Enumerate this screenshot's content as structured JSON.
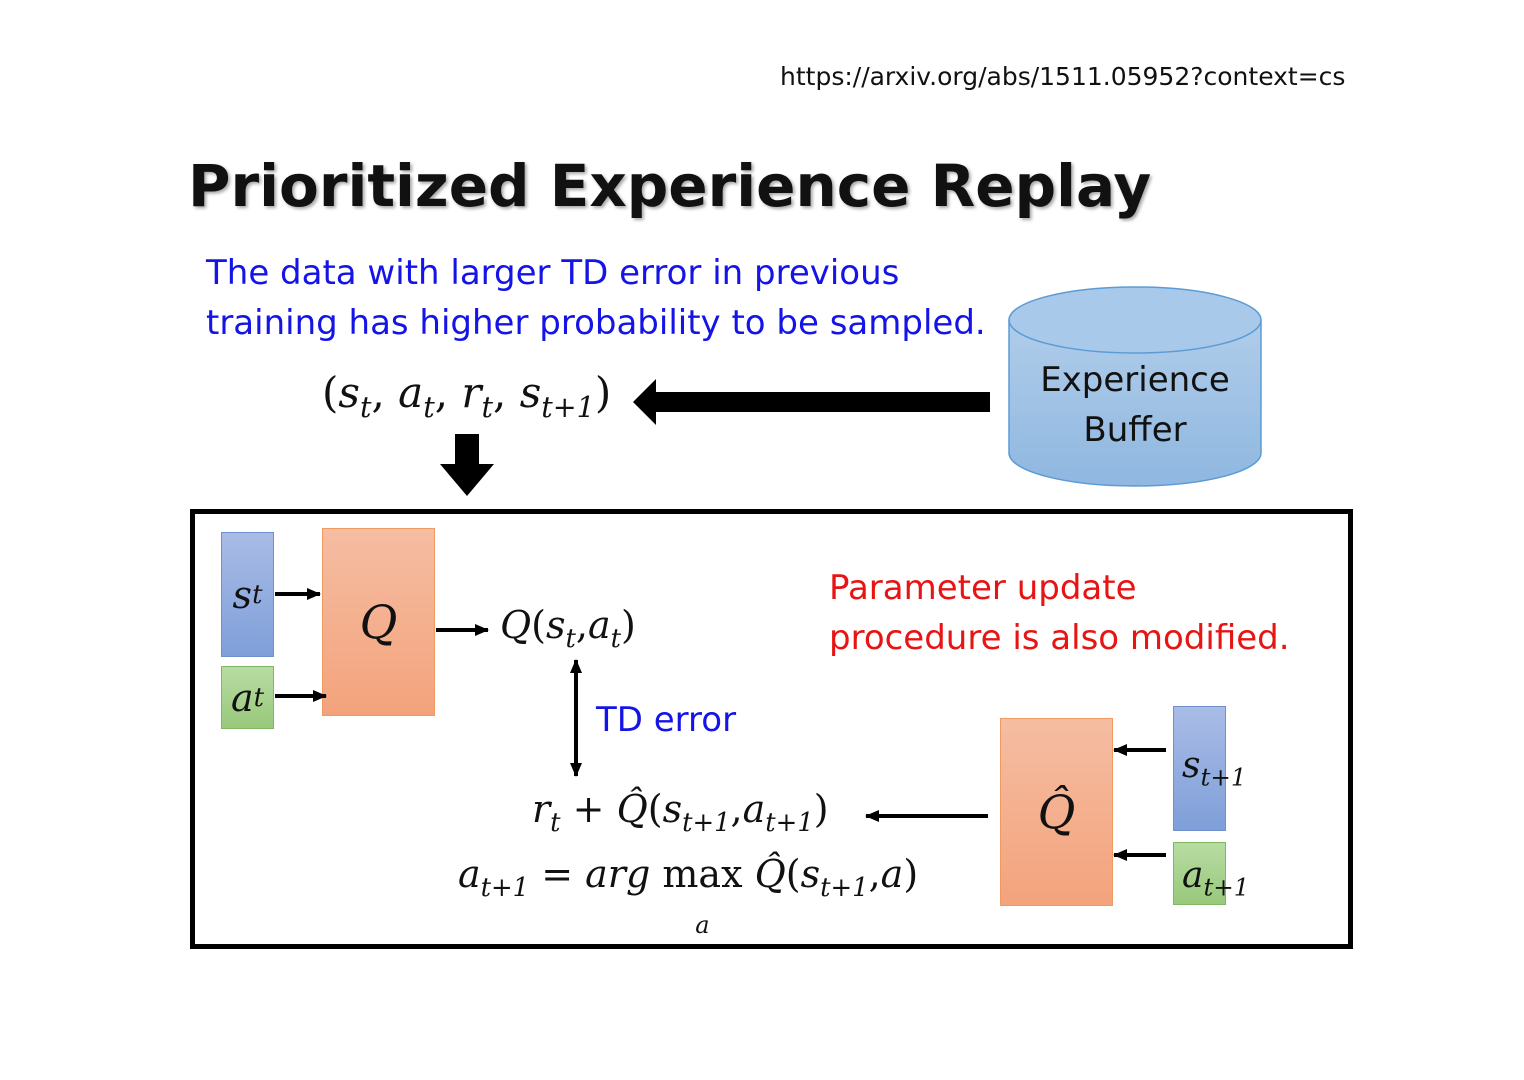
{
  "url": "https://arxiv.org/abs/1511.05952?context=cs",
  "title": "Prioritized Experience Replay",
  "description": [
    "The data with larger TD error in previous",
    "training has higher probability to be sampled."
  ],
  "buffer": {
    "line1": "Experience",
    "line2": "Buffer"
  },
  "tuple": {
    "open": "(",
    "sep": ",",
    "close": ")",
    "items": [
      {
        "b": "s",
        "sub": "t"
      },
      {
        "b": "a",
        "sub": "t"
      },
      {
        "b": "r",
        "sub": "t"
      },
      {
        "b": "s",
        "sub": "t+1"
      }
    ]
  },
  "inputs_left": {
    "state": {
      "b": "s",
      "sub": "t"
    },
    "action": {
      "b": "a",
      "sub": "t"
    }
  },
  "q_label": "Q",
  "q_output": {
    "f": "Q",
    "open": "(",
    "s": "s",
    "s_sub": "t",
    "sep": ",",
    "a": "a",
    "a_sub": "t",
    "close": ")"
  },
  "td_error": "TD error",
  "note": [
    "Parameter update",
    "procedure is also modified."
  ],
  "target": {
    "r": "r",
    "r_sub": "t",
    "plus": "+",
    "f": "Q̂",
    "open": "(",
    "s": "s",
    "s_sub": "t+1",
    "sep": ",",
    "a": "a",
    "a_sub": "t+1",
    "close": ")"
  },
  "argmax": {
    "lhs": "a",
    "lhs_sub": "t+1",
    "eq": "=",
    "arg": "arg",
    "max": "max",
    "under": "a",
    "f": "Q̂",
    "open": "(",
    "s": "s",
    "s_sub": "t+1",
    "sep": ",",
    "a": "a",
    "close": ")"
  },
  "qhat_label": "Q̂",
  "inputs_right": {
    "state": {
      "b": "s",
      "sub": "t+1"
    },
    "action": {
      "b": "a",
      "sub": "t+1"
    }
  },
  "colors": {
    "blue_text": "#1414e6",
    "red_text": "#e81414",
    "state_box": "#8faadc",
    "action_box": "#a9d18e",
    "q_box": "#f4b183",
    "buffer": "#9dc3e6"
  }
}
